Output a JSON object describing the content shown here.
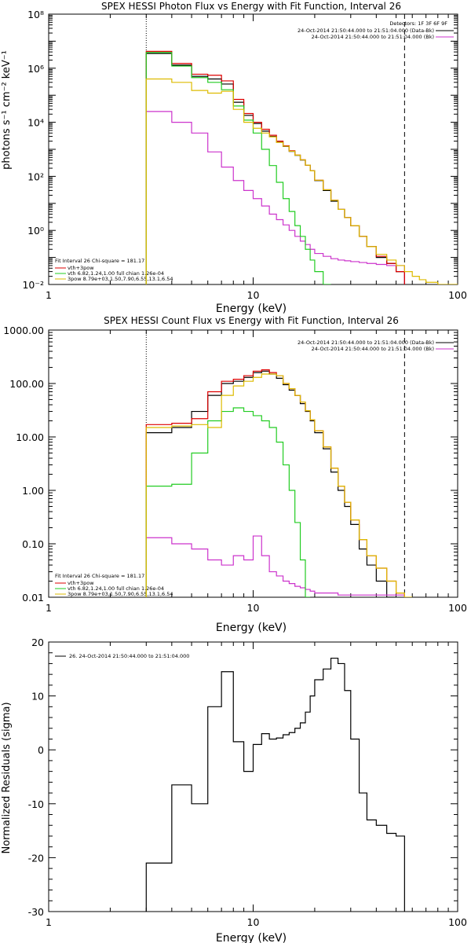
{
  "chart_data": [
    {
      "type": "line",
      "title": "SPEX HESSI Photon Flux vs Energy with Fit Function, Interval 26",
      "xlabel": "Energy (keV)",
      "ylabel": "photons s⁻¹ cm⁻² keV⁻¹",
      "xscale": "log",
      "yscale": "log",
      "xlim": [
        1,
        100
      ],
      "ylim": [
        0.01,
        100000000
      ],
      "x_tick_labels": [
        "1",
        "10",
        "100"
      ],
      "y_tick_labels": [
        "10-2",
        "100",
        "102",
        "104",
        "106",
        "108"
      ],
      "legend_top": {
        "header": "Detectors: 1F 3F 6F 9F",
        "items": [
          {
            "label": "24-Oct-2014 21:50:44.000 to 21:51:04.000 (Data-Bk)",
            "color": "#000000"
          },
          {
            "label": "24-Oct-2014 21:50:44.000 to 21:51:04.000 (Bk)",
            "color": "#cc33cc"
          }
        ]
      },
      "legend_bottom": {
        "header": "Fit Interval 26    Chi-square = 181.17",
        "items": [
          {
            "label": "vth+3pow",
            "color": "#dd0000"
          },
          {
            "label": "vth 6.82,1.24,1.00  full chian 1.26e-04",
            "color": "#22cc22"
          },
          {
            "label": "3pow 8.79e+03,1.50,7.90,6.55,13.1,6.54",
            "color": "#ddbb00"
          }
        ]
      },
      "vlines": [
        {
          "x": 3,
          "style": "dotted"
        },
        {
          "x": 55,
          "style": "dashed"
        }
      ],
      "x_edges": [
        3,
        4,
        5,
        6,
        7,
        8,
        9,
        10,
        11,
        12,
        13,
        14,
        15,
        16,
        17,
        18,
        19,
        20,
        22,
        24,
        26,
        28,
        30,
        33,
        36,
        40,
        45,
        50,
        55,
        60,
        65,
        70,
        80,
        90,
        100
      ],
      "series": [
        {
          "name": "Data-Bk",
          "color": "#000000",
          "values": [
            3500000,
            1300000,
            500000,
            400000,
            260000,
            55000,
            18000,
            9000,
            4700,
            3000,
            1850,
            1280,
            840,
            600,
            400,
            260,
            160,
            70,
            30,
            12,
            6,
            3,
            1.5,
            0.6,
            0.25,
            0.1,
            0.06,
            0.03
          ]
        },
        {
          "name": "Bk",
          "color": "#cc33cc",
          "values": [
            25000,
            10000,
            4000,
            800,
            220,
            70,
            30,
            15,
            8,
            4,
            2.5,
            1.6,
            1,
            0.6,
            0.4,
            0.3,
            0.2,
            0.14,
            0.11,
            0.09,
            0.08,
            0.075,
            0.07,
            0.065,
            0.06,
            0.055,
            0.05,
            0.05
          ]
        },
        {
          "name": "vth+3pow",
          "color": "#dd0000",
          "values": [
            4200000,
            1500000,
            600000,
            550000,
            340000,
            70000,
            21000,
            10000,
            5500,
            3300,
            2000,
            1350,
            880,
            610,
            410,
            260,
            160,
            72,
            32,
            13,
            6,
            3,
            1.5,
            0.6,
            0.25,
            0.11,
            0.06,
            0.03
          ]
        },
        {
          "name": "vth",
          "color": "#22cc22",
          "values": [
            3800000,
            1200000,
            450000,
            300000,
            160000,
            40000,
            12000,
            4000,
            1000,
            250,
            60,
            15,
            5,
            1.5,
            0.6,
            0.2,
            0.08,
            0.03,
            0.01
          ]
        },
        {
          "name": "3pow",
          "color": "#ddbb00",
          "values": [
            400000,
            300000,
            150000,
            120000,
            140000,
            30000,
            10000,
            6000,
            4000,
            2900,
            1800,
            1300,
            850,
            610,
            410,
            260,
            160,
            72,
            32,
            13,
            6,
            3,
            1.5,
            0.6,
            0.25,
            0.13,
            0.08,
            0.05,
            0.03,
            0.02,
            0.015,
            0.012,
            0.01,
            0.01
          ]
        }
      ]
    },
    {
      "type": "line",
      "title": "SPEX HESSI Count Flux vs Energy with Fit Function, Interval 26",
      "xlabel": "Energy (keV)",
      "ylabel": "",
      "xscale": "log",
      "yscale": "log",
      "xlim": [
        1,
        100
      ],
      "ylim": [
        0.01,
        1000
      ],
      "x_tick_labels": [
        "1",
        "10",
        "100"
      ],
      "y_tick_labels": [
        "0.01",
        "0.10",
        "1.00",
        "10.00",
        "100.00",
        "1000.00"
      ],
      "legend_top": {
        "header": "",
        "items": [
          {
            "label": "24-Oct-2014 21:50:44.000 to 21:51:04.000 (Data-Bk)",
            "color": "#000000"
          },
          {
            "label": "24-Oct-2014 21:50:44.000 to 21:51:04.000 (Bk)",
            "color": "#cc33cc"
          }
        ]
      },
      "legend_bottom": {
        "header": "Fit Interval 26    Chi-square = 181.17",
        "items": [
          {
            "label": "vth+3pow",
            "color": "#dd0000"
          },
          {
            "label": "vth 6.82,1.24,1.00  full chian 1.26e-04",
            "color": "#22cc22"
          },
          {
            "label": "3pow 8.79e+03,1.50,7.90,6.55,13.1,6.54",
            "color": "#ddbb00"
          }
        ]
      },
      "vlines": [
        {
          "x": 3,
          "style": "dotted"
        },
        {
          "x": 55,
          "style": "dashed"
        }
      ],
      "x_edges": [
        3,
        4,
        5,
        6,
        7,
        8,
        9,
        10,
        11,
        12,
        13,
        14,
        15,
        16,
        17,
        18,
        19,
        20,
        22,
        24,
        26,
        28,
        30,
        33,
        36,
        40,
        45,
        50,
        55,
        60,
        65,
        70,
        80
      ],
      "series": [
        {
          "name": "Data-Bk",
          "color": "#000000",
          "values": [
            12,
            15,
            30,
            60,
            100,
            110,
            130,
            160,
            170,
            150,
            125,
            95,
            75,
            60,
            42,
            30,
            20,
            12,
            6,
            2.2,
            1.0,
            0.5,
            0.23,
            0.08,
            0.04,
            0.02,
            0.01
          ]
        },
        {
          "name": "Bk",
          "color": "#cc33cc",
          "values": [
            0.13,
            0.1,
            0.08,
            0.05,
            0.04,
            0.06,
            0.05,
            0.14,
            0.06,
            0.03,
            0.025,
            0.02,
            0.018,
            0.016,
            0.015,
            0.014,
            0.013,
            0.012,
            0.012,
            0.012,
            0.011,
            0.011,
            0.011,
            0.011,
            0.011,
            0.011,
            0.011,
            0.011
          ]
        },
        {
          "name": "vth+3pow",
          "color": "#dd0000",
          "values": [
            17,
            18,
            22,
            70,
            110,
            120,
            140,
            170,
            180,
            160,
            140,
            100,
            80,
            60,
            45,
            31,
            21,
            13,
            6.5,
            2.6,
            1.2,
            0.6,
            0.28,
            0.12,
            0.06,
            0.035,
            0.02,
            0.012
          ]
        },
        {
          "name": "vth",
          "color": "#22cc22",
          "values": [
            1.2,
            1.3,
            5,
            20,
            30,
            35,
            30,
            25,
            20,
            15,
            8,
            3,
            1,
            0.25,
            0.05,
            0.01
          ]
        },
        {
          "name": "3pow",
          "color": "#ddbb00",
          "values": [
            15,
            16,
            17,
            15,
            60,
            90,
            110,
            130,
            150,
            150,
            140,
            100,
            80,
            60,
            45,
            31,
            21,
            13,
            6.5,
            2.6,
            1.2,
            0.6,
            0.28,
            0.12,
            0.06,
            0.035,
            0.02,
            0.012,
            0.01
          ]
        }
      ]
    },
    {
      "type": "line",
      "title": "",
      "xlabel": "Energy (keV)",
      "ylabel": "Normalized Residuals (sigma)",
      "xscale": "log",
      "yscale": "linear",
      "xlim": [
        1,
        100
      ],
      "ylim": [
        -30,
        20
      ],
      "x_tick_labels": [
        "1",
        "10",
        "100"
      ],
      "y_tick_labels": [
        "-30",
        "-20",
        "-10",
        "0",
        "10",
        "20"
      ],
      "legend": [
        {
          "label": "26. 24-Oct-2014 21:50:44.000 to 21:51:04.000",
          "color": "#000000"
        }
      ],
      "x_edges": [
        3,
        4,
        5,
        6,
        7,
        8,
        9,
        10,
        11,
        12,
        13,
        14,
        15,
        16,
        17,
        18,
        19,
        20,
        22,
        24,
        26,
        28,
        30,
        33,
        36,
        40,
        45,
        50,
        55
      ],
      "series": [
        {
          "name": "26. 24-Oct-2014 21:50:44.000 to 21:51:04.000",
          "color": "#000000",
          "values": [
            -21,
            -6.5,
            -10,
            8,
            14.5,
            1.5,
            -4,
            1,
            3,
            2,
            2.2,
            2.8,
            3.2,
            4,
            5,
            7,
            10,
            13,
            15,
            17,
            16,
            11,
            2,
            -8,
            -13,
            -14,
            -15.5,
            -16
          ]
        }
      ]
    }
  ]
}
